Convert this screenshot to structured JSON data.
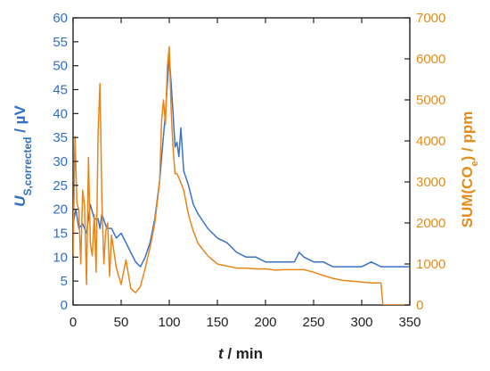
{
  "chart_data": {
    "type": "line",
    "xlabel_symbol": "t",
    "xlabel_unit": " / min",
    "ylabel_left_symbol": "U",
    "ylabel_left_sub": "S,corrected",
    "ylabel_left_unit": " / µV",
    "ylabel_right_prefix": "SUM(CO",
    "ylabel_right_sub": "e",
    "ylabel_right_suffix": ") / ppm",
    "xlim": [
      0,
      350
    ],
    "ylim_left": [
      0,
      60
    ],
    "ylim_right": [
      0,
      7000
    ],
    "x_ticks": [
      "0",
      "50",
      "100",
      "150",
      "200",
      "250",
      "300",
      "350"
    ],
    "y_left_ticks": [
      "0",
      "5",
      "10",
      "15",
      "20",
      "25",
      "30",
      "35",
      "40",
      "45",
      "50",
      "55",
      "60"
    ],
    "y_right_ticks": [
      "0",
      "1000",
      "2000",
      "3000",
      "4000",
      "5000",
      "6000",
      "7000"
    ],
    "grid": false,
    "legend": "none",
    "colors": {
      "left_axis": "#2f6fc4",
      "right_axis": "#e38b1b",
      "axes": "#222222"
    },
    "series": [
      {
        "axis": "left",
        "color": "#3a72c8",
        "x": [
          0,
          3,
          6,
          10,
          14,
          18,
          22,
          26,
          28,
          30,
          35,
          40,
          45,
          50,
          55,
          60,
          65,
          70,
          75,
          80,
          85,
          90,
          93,
          96,
          98,
          100,
          102,
          104,
          106,
          108,
          110,
          112,
          115,
          120,
          125,
          130,
          140,
          150,
          160,
          170,
          180,
          190,
          200,
          210,
          220,
          230,
          235,
          240,
          250,
          260,
          270,
          280,
          290,
          300,
          310,
          320,
          330,
          340,
          350
        ],
        "y": [
          17,
          20,
          16,
          17,
          15,
          21,
          18,
          18,
          16,
          19,
          16,
          16,
          14,
          15,
          13,
          11,
          9,
          8,
          10,
          13,
          18,
          26,
          33,
          40,
          46,
          52,
          46,
          40,
          33,
          34,
          31,
          37,
          28,
          25,
          21,
          19,
          16,
          14,
          13,
          11,
          10,
          10,
          9,
          9,
          9,
          9,
          11,
          10,
          9,
          9,
          8,
          8,
          8,
          8,
          9,
          8,
          8,
          8,
          8
        ]
      },
      {
        "axis": "right",
        "color": "#e8851a",
        "x": [
          0,
          2,
          4,
          6,
          8,
          10,
          12,
          14,
          16,
          18,
          20,
          22,
          24,
          26,
          28,
          30,
          32,
          34,
          36,
          38,
          40,
          45,
          50,
          55,
          60,
          65,
          70,
          75,
          80,
          85,
          90,
          92,
          94,
          96,
          98,
          100,
          102,
          104,
          106,
          108,
          110,
          115,
          120,
          125,
          130,
          140,
          150,
          160,
          170,
          180,
          190,
          200,
          210,
          220,
          230,
          240,
          250,
          260,
          270,
          280,
          290,
          300,
          310,
          320,
          322,
          324,
          330,
          340,
          350
        ],
        "y": [
          1200,
          4100,
          2500,
          2300,
          1000,
          2800,
          2400,
          500,
          3600,
          1500,
          1200,
          2200,
          800,
          4200,
          5400,
          2500,
          1000,
          1800,
          2000,
          700,
          1700,
          900,
          500,
          1100,
          400,
          300,
          450,
          900,
          1400,
          2000,
          3000,
          4500,
          5000,
          4400,
          5800,
          6300,
          4700,
          3800,
          3200,
          3200,
          3100,
          2800,
          2200,
          1800,
          1500,
          1200,
          1000,
          950,
          900,
          900,
          880,
          880,
          850,
          860,
          860,
          860,
          800,
          720,
          650,
          600,
          580,
          560,
          540,
          540,
          0,
          0,
          0,
          0,
          0
        ]
      }
    ]
  }
}
